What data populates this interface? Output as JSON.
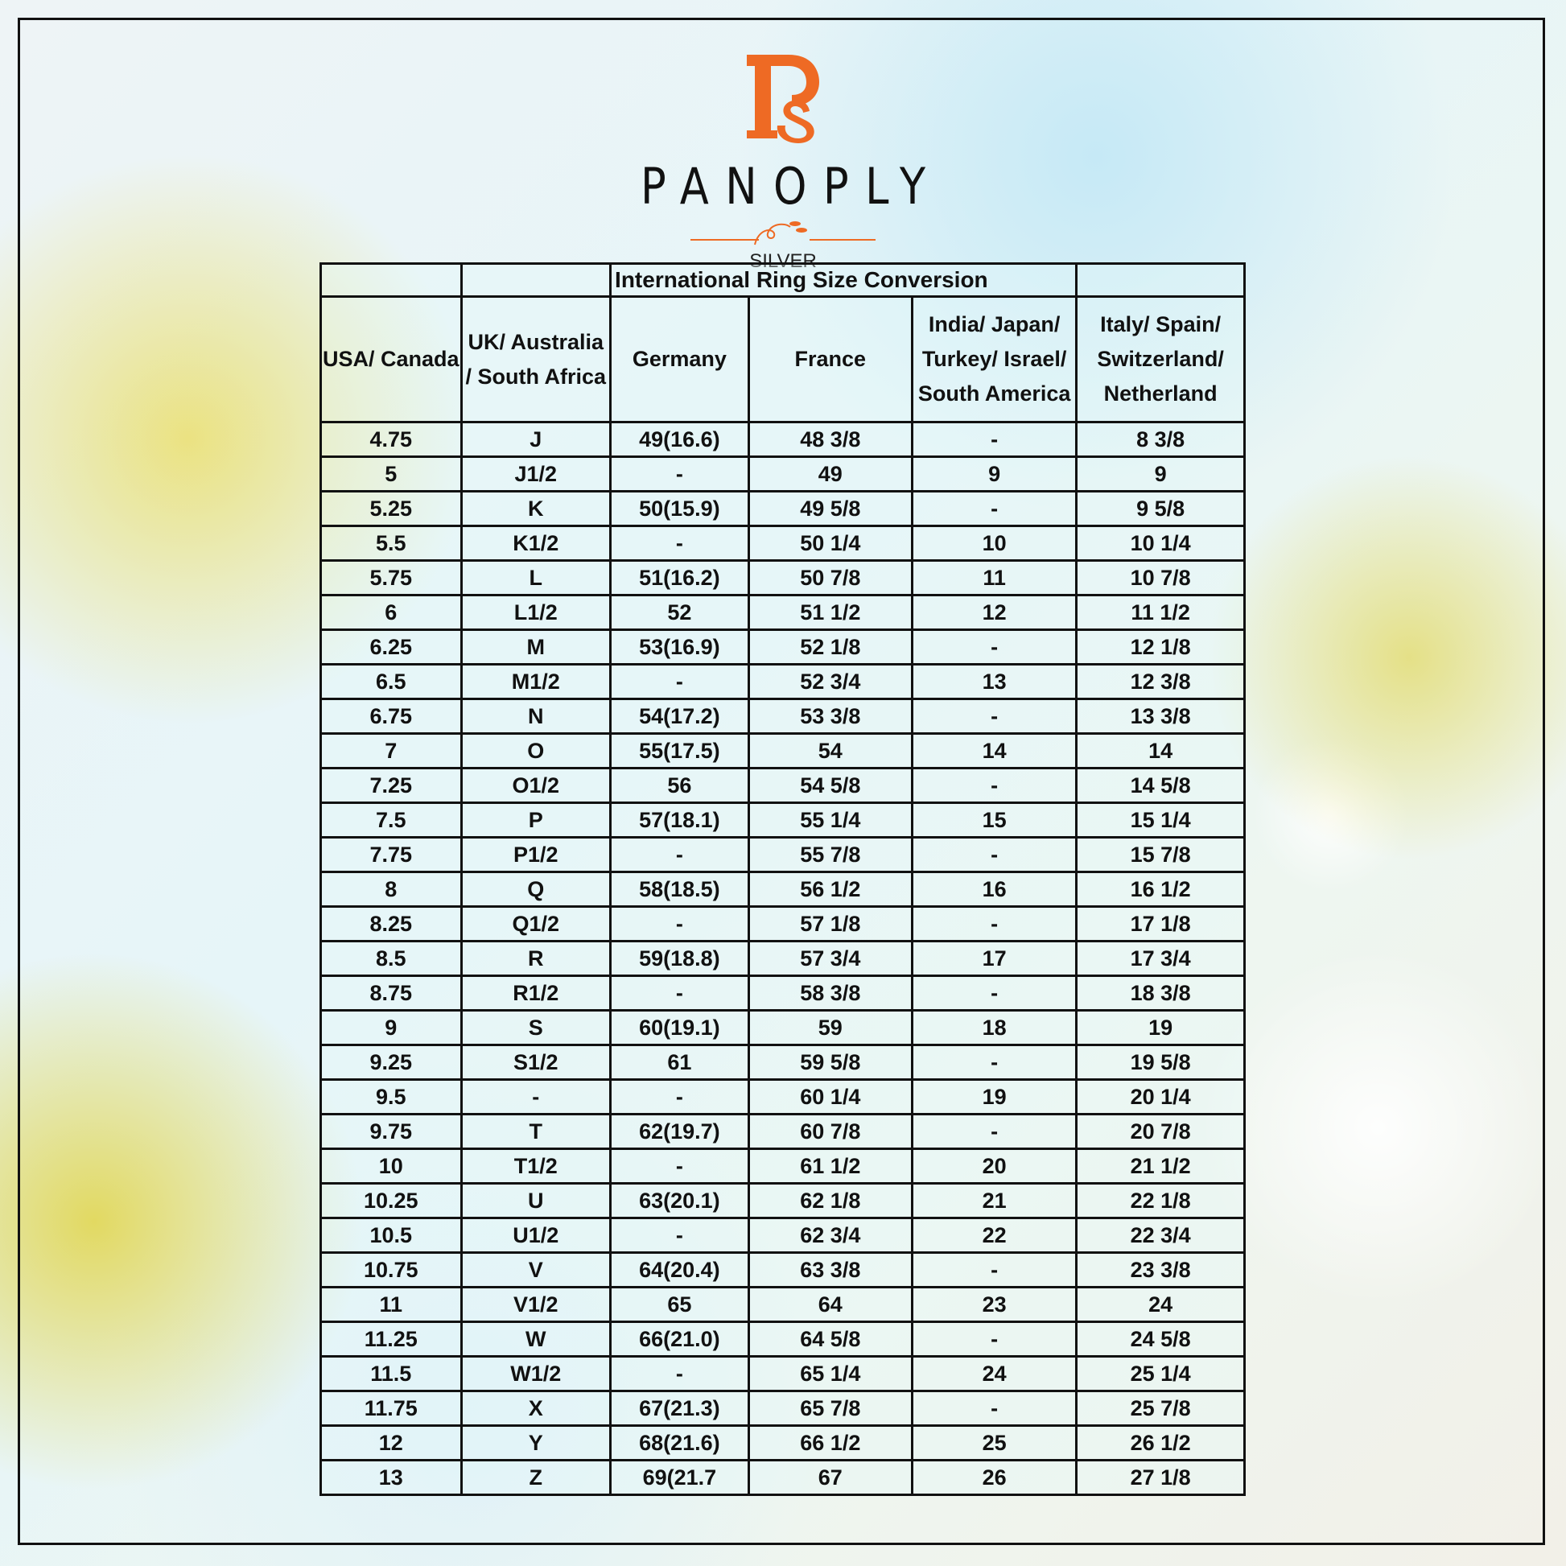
{
  "brand": {
    "name": "PANOPLY",
    "subtitle": "SILVER",
    "monogram": "PS",
    "accent": "#ee6a24"
  },
  "table": {
    "title": "International Ring Size Conversion",
    "headers": [
      "USA/ Canada",
      "UK/ Australia / South Africa",
      "Germany",
      "France",
      "India/ Japan/ Turkey/ Israel/ South America",
      "Italy/ Spain/ Switzerland/ Netherland"
    ],
    "rows": [
      [
        "4.75",
        "J",
        "49(16.6)",
        "48 3/8",
        "-",
        "8 3/8"
      ],
      [
        "5",
        "J1/2",
        "-",
        "49",
        "9",
        "9"
      ],
      [
        "5.25",
        "K",
        "50(15.9)",
        "49 5/8",
        "-",
        "9 5/8"
      ],
      [
        "5.5",
        "K1/2",
        "-",
        "50 1/4",
        "10",
        "10 1/4"
      ],
      [
        "5.75",
        "L",
        "51(16.2)",
        "50 7/8",
        "11",
        "10 7/8"
      ],
      [
        "6",
        "L1/2",
        "52",
        "51 1/2",
        "12",
        "11 1/2"
      ],
      [
        "6.25",
        "M",
        "53(16.9)",
        "52 1/8",
        "-",
        "12 1/8"
      ],
      [
        "6.5",
        "M1/2",
        "-",
        "52 3/4",
        "13",
        "12 3/8"
      ],
      [
        "6.75",
        "N",
        "54(17.2)",
        "53 3/8",
        "-",
        "13 3/8"
      ],
      [
        "7",
        "O",
        "55(17.5)",
        "54",
        "14",
        "14"
      ],
      [
        "7.25",
        "O1/2",
        "56",
        "54 5/8",
        "-",
        "14 5/8"
      ],
      [
        "7.5",
        "P",
        "57(18.1)",
        "55 1/4",
        "15",
        "15 1/4"
      ],
      [
        "7.75",
        "P1/2",
        "-",
        "55 7/8",
        "-",
        "15 7/8"
      ],
      [
        "8",
        "Q",
        "58(18.5)",
        "56 1/2",
        "16",
        "16 1/2"
      ],
      [
        "8.25",
        "Q1/2",
        "-",
        "57 1/8",
        "-",
        "17 1/8"
      ],
      [
        "8.5",
        "R",
        "59(18.8)",
        "57 3/4",
        "17",
        "17 3/4"
      ],
      [
        "8.75",
        "R1/2",
        "-",
        "58 3/8",
        "-",
        "18 3/8"
      ],
      [
        "9",
        "S",
        "60(19.1)",
        "59",
        "18",
        "19"
      ],
      [
        "9.25",
        "S1/2",
        "61",
        "59 5/8",
        "-",
        "19 5/8"
      ],
      [
        "9.5",
        "-",
        "-",
        "60 1/4",
        "19",
        "20 1/4"
      ],
      [
        "9.75",
        "T",
        "62(19.7)",
        "60 7/8",
        "-",
        "20 7/8"
      ],
      [
        "10",
        "T1/2",
        "-",
        "61 1/2",
        "20",
        "21 1/2"
      ],
      [
        "10.25",
        "U",
        "63(20.1)",
        "62 1/8",
        "21",
        "22 1/8"
      ],
      [
        "10.5",
        "U1/2",
        "-",
        "62 3/4",
        "22",
        "22 3/4"
      ],
      [
        "10.75",
        "V",
        "64(20.4)",
        "63 3/8",
        "-",
        "23 3/8"
      ],
      [
        "11",
        "V1/2",
        "65",
        "64",
        "23",
        "24"
      ],
      [
        "11.25",
        "W",
        "66(21.0)",
        "64 5/8",
        "-",
        "24 5/8"
      ],
      [
        "11.5",
        "W1/2",
        "-",
        "65 1/4",
        "24",
        "25 1/4"
      ],
      [
        "11.75",
        "X",
        "67(21.3)",
        "65 7/8",
        "-",
        "25 7/8"
      ],
      [
        "12",
        "Y",
        "68(21.6)",
        "66 1/2",
        "25",
        "26 1/2"
      ],
      [
        "13",
        "Z",
        "69(21.7",
        "67",
        "26",
        "27 1/8"
      ]
    ]
  }
}
